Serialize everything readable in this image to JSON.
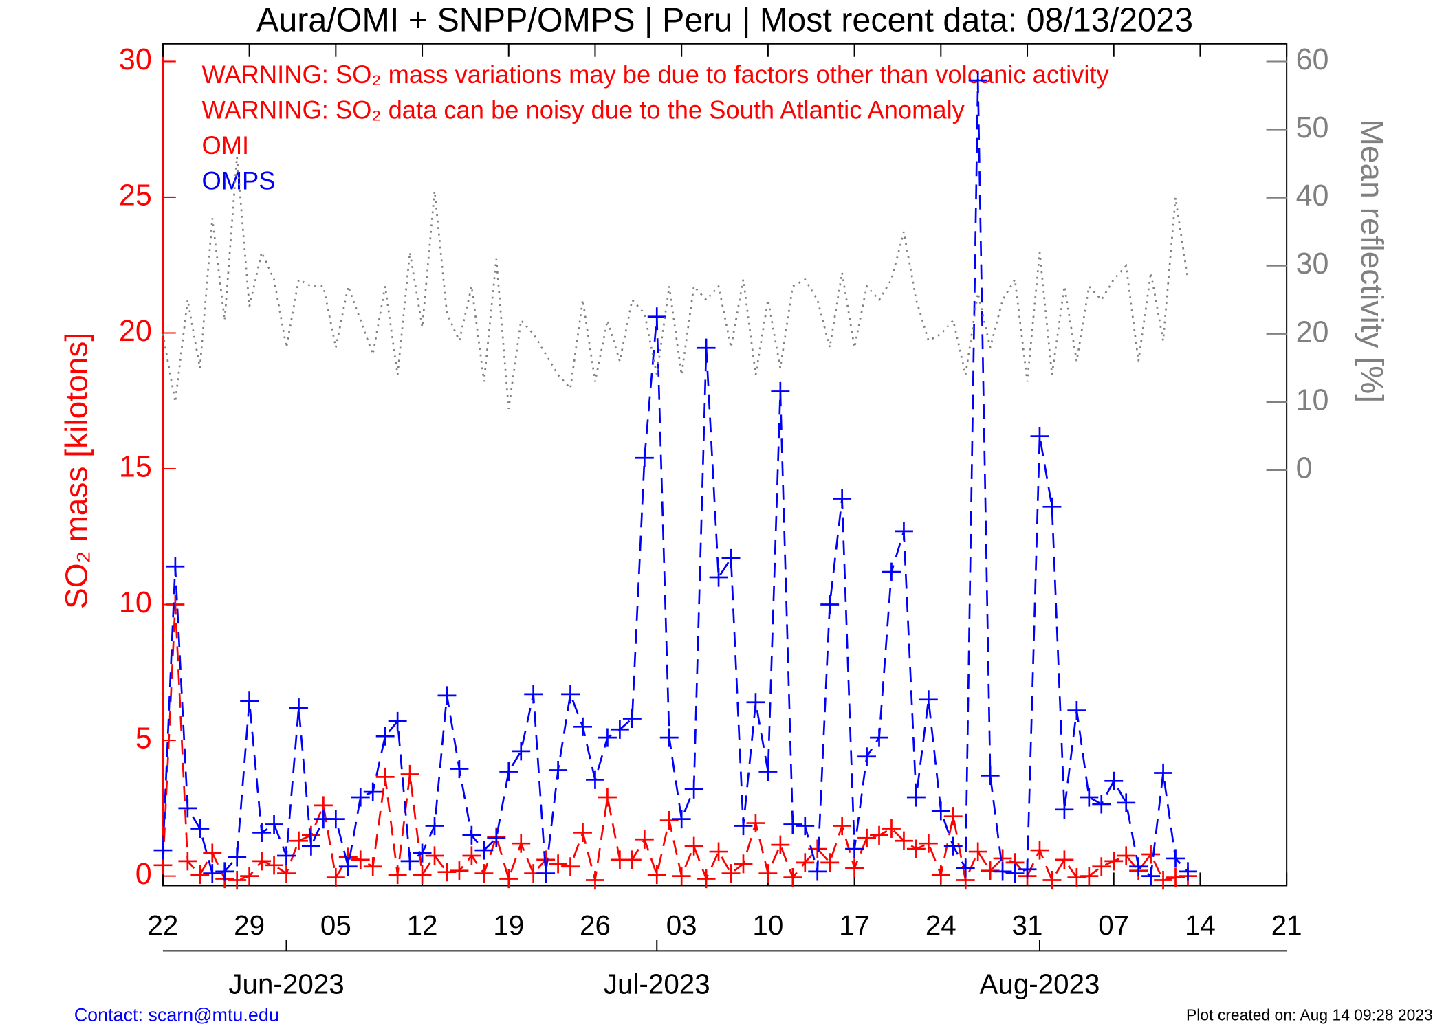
{
  "chart_data": {
    "type": "line",
    "title": "Aura/OMI + SNPP/OMPS | Peru | Most recent data: 08/13/2023",
    "y_label": "SO₂ mass [kilotons]",
    "y2_label": "Mean reflectivity [%]",
    "annotations": [
      {
        "text": "WARNING: SO₂ mass variations may be due to factors other than volcanic activity",
        "color": "#ff0000"
      },
      {
        "text": "WARNING: SO₂ data can be noisy due to the South Atlantic Anomaly",
        "color": "#ff0000"
      }
    ],
    "footer_left": "Contact: scarn@mtu.edu",
    "footer_right": "Plot created on: Aug 14 09:28 2023",
    "x": [
      "2023-05-22",
      "2023-05-23",
      "2023-05-24",
      "2023-05-25",
      "2023-05-26",
      "2023-05-27",
      "2023-05-28",
      "2023-05-29",
      "2023-05-30",
      "2023-05-31",
      "2023-06-01",
      "2023-06-02",
      "2023-06-03",
      "2023-06-04",
      "2023-06-05",
      "2023-06-06",
      "2023-06-07",
      "2023-06-08",
      "2023-06-09",
      "2023-06-10",
      "2023-06-11",
      "2023-06-12",
      "2023-06-13",
      "2023-06-14",
      "2023-06-15",
      "2023-06-16",
      "2023-06-17",
      "2023-06-18",
      "2023-06-19",
      "2023-06-20",
      "2023-06-21",
      "2023-06-22",
      "2023-06-23",
      "2023-06-24",
      "2023-06-25",
      "2023-06-26",
      "2023-06-27",
      "2023-06-28",
      "2023-06-29",
      "2023-06-30",
      "2023-07-01",
      "2023-07-02",
      "2023-07-03",
      "2023-07-04",
      "2023-07-05",
      "2023-07-06",
      "2023-07-07",
      "2023-07-08",
      "2023-07-09",
      "2023-07-10",
      "2023-07-11",
      "2023-07-12",
      "2023-07-13",
      "2023-07-14",
      "2023-07-15",
      "2023-07-16",
      "2023-07-17",
      "2023-07-18",
      "2023-07-19",
      "2023-07-20",
      "2023-07-21",
      "2023-07-22",
      "2023-07-23",
      "2023-07-24",
      "2023-07-25",
      "2023-07-26",
      "2023-07-27",
      "2023-07-28",
      "2023-07-29",
      "2023-07-30",
      "2023-07-31",
      "2023-08-01",
      "2023-08-02",
      "2023-08-03",
      "2023-08-04",
      "2023-08-05",
      "2023-08-06",
      "2023-08-07",
      "2023-08-08",
      "2023-08-09",
      "2023-08-10",
      "2023-08-11",
      "2023-08-12",
      "2023-08-13"
    ],
    "xlim": [
      "2023-05-22",
      "2023-08-21"
    ],
    "xticks": [
      {
        "value": "2023-05-22",
        "label": "22"
      },
      {
        "value": "2023-05-29",
        "label": "29"
      },
      {
        "value": "2023-06-05",
        "label": "05"
      },
      {
        "value": "2023-06-12",
        "label": "12"
      },
      {
        "value": "2023-06-19",
        "label": "19"
      },
      {
        "value": "2023-06-26",
        "label": "26"
      },
      {
        "value": "2023-07-03",
        "label": "03"
      },
      {
        "value": "2023-07-10",
        "label": "10"
      },
      {
        "value": "2023-07-17",
        "label": "17"
      },
      {
        "value": "2023-07-24",
        "label": "24"
      },
      {
        "value": "2023-07-31",
        "label": "31"
      },
      {
        "value": "2023-08-07",
        "label": "07"
      },
      {
        "value": "2023-08-14",
        "label": "14"
      },
      {
        "value": "2023-08-21",
        "label": "21"
      }
    ],
    "month_ticks": [
      {
        "value": "2023-06-01",
        "label": "Jun-2023"
      },
      {
        "value": "2023-07-01",
        "label": "Jul-2023"
      },
      {
        "value": "2023-08-01",
        "label": "Aug-2023"
      }
    ],
    "ylim": [
      -0.35,
      30.65
    ],
    "yticks": [
      0,
      5,
      10,
      15,
      20,
      25,
      30
    ],
    "y_axis_color": "#ff0000",
    "y2lim": [
      -61,
      62.6
    ],
    "y2ticks": [
      0,
      10,
      20,
      30,
      40,
      50,
      60
    ],
    "y2_axis_color": "#808080",
    "series": [
      {
        "name": "OMI",
        "color": "#ff0000",
        "marker": "+",
        "line_style": "dashed",
        "values": [
          0.4,
          10.0,
          0.55,
          0.05,
          0.85,
          -0.1,
          -0.15,
          0.0,
          0.55,
          0.4,
          0.1,
          1.3,
          1.5,
          2.6,
          -0.05,
          0.7,
          0.6,
          0.35,
          3.65,
          0.05,
          3.75,
          0.05,
          0.75,
          0.15,
          0.2,
          0.75,
          0.1,
          1.45,
          -0.1,
          1.2,
          0.1,
          0.6,
          0.45,
          0.35,
          1.6,
          -0.15,
          2.9,
          0.6,
          0.6,
          1.35,
          0.05,
          2.05,
          0.0,
          1.1,
          -0.1,
          0.9,
          0.1,
          0.45,
          1.95,
          0.1,
          1.15,
          -0.05,
          0.5,
          1.0,
          0.5,
          1.85,
          0.3,
          1.4,
          1.5,
          1.75,
          1.3,
          1.0,
          1.2,
          0.05,
          2.2,
          -0.15,
          0.9,
          0.2,
          0.65,
          0.5,
          0.0,
          0.95,
          -0.15,
          0.6,
          -0.05,
          0.0,
          0.35,
          0.55,
          0.75,
          0.2,
          0.8,
          -0.15,
          -0.05,
          0.0
        ]
      },
      {
        "name": "OMPS",
        "color": "#0000ff",
        "marker": "+",
        "line_style": "dashed",
        "values": [
          0.95,
          11.4,
          2.5,
          1.75,
          0.1,
          0.17,
          0.7,
          6.45,
          1.6,
          1.9,
          0.75,
          6.2,
          1.1,
          2.1,
          2.1,
          0.35,
          2.9,
          3.1,
          5.15,
          5.7,
          0.55,
          0.85,
          1.85,
          6.65,
          3.95,
          1.5,
          0.95,
          1.4,
          3.85,
          4.6,
          6.7,
          0.1,
          3.9,
          6.7,
          5.5,
          3.55,
          5.1,
          5.4,
          5.8,
          15.4,
          20.6,
          5.1,
          2.1,
          3.2,
          19.45,
          11.0,
          11.7,
          1.85,
          6.4,
          3.85,
          17.85,
          1.9,
          1.85,
          0.17,
          10.0,
          13.9,
          1.0,
          4.4,
          5.1,
          11.2,
          12.7,
          2.9,
          6.5,
          2.4,
          1.1,
          0.3,
          29.3,
          3.7,
          0.17,
          0.1,
          0.25,
          16.2,
          13.6,
          2.45,
          6.1,
          2.9,
          2.65,
          3.5,
          2.7,
          0.35,
          0,
          3.8,
          0.65,
          0.17
        ]
      },
      {
        "axis": "y2",
        "color": "#808080",
        "line_style": "dotted",
        "values": [
          20,
          10,
          25,
          15,
          37,
          22,
          46,
          24,
          32,
          28,
          18,
          28,
          27,
          27,
          18,
          27,
          22,
          17,
          27,
          14,
          32,
          21,
          41,
          23,
          19,
          27,
          13,
          31,
          9,
          22,
          20,
          17,
          14,
          12,
          25,
          13,
          22,
          16,
          25,
          23,
          14,
          27,
          14,
          27,
          25,
          27,
          18,
          28,
          14,
          25,
          15,
          27,
          28,
          25,
          18,
          29,
          18,
          27,
          25,
          28,
          35,
          25,
          19,
          20,
          22,
          14,
          26,
          18,
          25,
          28,
          13,
          32,
          14,
          27,
          16,
          27,
          25,
          28,
          30,
          16,
          29,
          19,
          40,
          28
        ]
      }
    ]
  }
}
